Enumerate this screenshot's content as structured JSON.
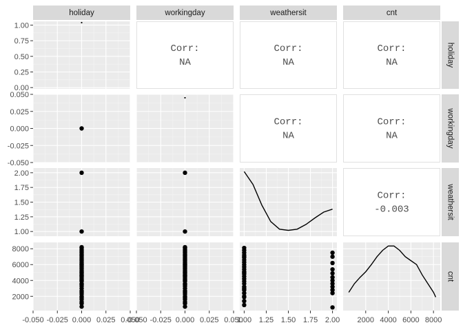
{
  "chart_data": {
    "type": "scatter",
    "title": "",
    "variables": [
      "holiday",
      "workingday",
      "weathersit",
      "cnt"
    ],
    "grid": true,
    "axis_ticks": {
      "x": [
        [
          "-0.050",
          "-0.025",
          "0.000",
          "0.025",
          "0.050"
        ],
        [
          "-0.050",
          "-0.025",
          "0.000",
          "0.025",
          "0.050"
        ],
        [
          "1.00",
          "1.25",
          "1.50",
          "1.75",
          "2.00"
        ],
        [
          "2000",
          "4000",
          "6000",
          "8000"
        ]
      ],
      "y": [
        [
          "0.00",
          "0.25",
          "0.50",
          "0.75",
          "1.00"
        ],
        [
          "-0.050",
          "-0.025",
          "0.000",
          "0.025",
          "0.050"
        ],
        [
          "1.00",
          "1.25",
          "1.50",
          "1.75",
          "2.00"
        ],
        [
          "2000",
          "4000",
          "6000",
          "8000"
        ]
      ]
    },
    "x_ranges": [
      [
        -0.05,
        0.05
      ],
      [
        -0.05,
        0.05
      ],
      [
        0.95,
        2.05
      ],
      [
        0,
        8600
      ]
    ],
    "y_ranges": [
      [
        -0.02,
        1.06
      ],
      [
        -0.05,
        0.05
      ],
      [
        0.92,
        2.08
      ],
      [
        200,
        8800
      ]
    ],
    "correlations": [
      {
        "row": 0,
        "col": 1,
        "label": "Corr:",
        "value": "NA"
      },
      {
        "row": 0,
        "col": 2,
        "label": "Corr:",
        "value": "NA"
      },
      {
        "row": 0,
        "col": 3,
        "label": "Corr:",
        "value": "NA"
      },
      {
        "row": 1,
        "col": 2,
        "label": "Corr:",
        "value": "NA"
      },
      {
        "row": 1,
        "col": 3,
        "label": "Corr:",
        "value": "NA"
      },
      {
        "row": 2,
        "col": 3,
        "label": "Corr:",
        "value": "-0.003"
      }
    ],
    "diagonal": [
      {
        "var": "holiday",
        "type": "point",
        "x": 0,
        "y": 1.04
      },
      {
        "var": "workingday",
        "type": "point",
        "x": 0,
        "y": 0.045
      },
      {
        "var": "weathersit",
        "type": "density",
        "x": [
          1.0,
          1.1,
          1.2,
          1.3,
          1.4,
          1.5,
          1.6,
          1.7,
          1.8,
          1.9,
          2.0
        ],
        "y": [
          2.02,
          1.8,
          1.45,
          1.17,
          1.04,
          1.02,
          1.04,
          1.12,
          1.23,
          1.33,
          1.38
        ]
      },
      {
        "var": "cnt",
        "type": "density",
        "x": [
          500,
          1000,
          1500,
          2000,
          2500,
          3000,
          3500,
          4000,
          4500,
          5000,
          5500,
          6000,
          6500,
          7000,
          7500,
          8000,
          8200
        ],
        "y": [
          2500,
          3600,
          4400,
          5100,
          6000,
          7000,
          7800,
          8350,
          8350,
          7800,
          7000,
          6500,
          6000,
          4700,
          3600,
          2500,
          1900
        ]
      }
    ],
    "scatter": [
      {
        "row": 1,
        "col": 0,
        "x_values": [
          0
        ],
        "y_values": [
          0
        ]
      },
      {
        "row": 2,
        "col": 0,
        "x_values": [
          0,
          0
        ],
        "y_values": [
          1,
          2
        ]
      },
      {
        "row": 2,
        "col": 1,
        "x_values": [
          0,
          0
        ],
        "y_values": [
          1,
          2
        ]
      },
      {
        "row": 3,
        "col": 0,
        "x_values": [
          0,
          0,
          0,
          0,
          0,
          0,
          0,
          0,
          0,
          0,
          0,
          0,
          0,
          0,
          0,
          0,
          0,
          0,
          0,
          0,
          0,
          0,
          0,
          0,
          0,
          0,
          0,
          0,
          0,
          0,
          0,
          0,
          0,
          0,
          0,
          0,
          0,
          0,
          0,
          0
        ],
        "y_values": [
          700,
          1100,
          1600,
          2000,
          2300,
          2700,
          3000,
          3300,
          3600,
          3900,
          4100,
          4300,
          4500,
          4700,
          4900,
          5100,
          5300,
          5500,
          5700,
          5900,
          6100,
          6300,
          6500,
          6700,
          6900,
          7100,
          7300,
          7500,
          7700,
          7900,
          8100,
          8200,
          1300,
          1800,
          2500,
          3500,
          4000,
          4600,
          5000,
          6000
        ]
      },
      {
        "row": 3,
        "col": 1,
        "x_values": [
          0,
          0,
          0,
          0,
          0,
          0,
          0,
          0,
          0,
          0,
          0,
          0,
          0,
          0,
          0,
          0,
          0,
          0,
          0,
          0,
          0,
          0,
          0,
          0,
          0,
          0,
          0,
          0,
          0,
          0,
          0,
          0,
          0,
          0,
          0,
          0,
          0,
          0,
          0,
          0
        ],
        "y_values": [
          700,
          1100,
          1600,
          2000,
          2300,
          2700,
          3000,
          3300,
          3600,
          3900,
          4100,
          4300,
          4500,
          4700,
          4900,
          5100,
          5300,
          5500,
          5700,
          5900,
          6100,
          6300,
          6500,
          6700,
          6900,
          7100,
          7300,
          7500,
          7700,
          7900,
          8100,
          8200,
          1300,
          1800,
          2500,
          3500,
          4000,
          4600,
          5000,
          6000
        ]
      },
      {
        "row": 3,
        "col": 2,
        "x_values": [
          1,
          1,
          1,
          1,
          1,
          1,
          1,
          1,
          1,
          1,
          1,
          1,
          1,
          1,
          1,
          1,
          1,
          1,
          1,
          1,
          1,
          1,
          1,
          1,
          1,
          1,
          2,
          2,
          2,
          2,
          2,
          2,
          2,
          2,
          2,
          2,
          2,
          2
        ],
        "y_values": [
          900,
          1400,
          1900,
          2400,
          2800,
          3200,
          3600,
          3900,
          4200,
          4500,
          4800,
          5100,
          5400,
          5700,
          6000,
          6300,
          6600,
          6900,
          7200,
          7500,
          7800,
          8100,
          2000,
          3000,
          5000,
          7000,
          600,
          2400,
          2800,
          3200,
          3600,
          4000,
          4400,
          4900,
          5400,
          6200,
          7000,
          7500
        ]
      }
    ]
  }
}
